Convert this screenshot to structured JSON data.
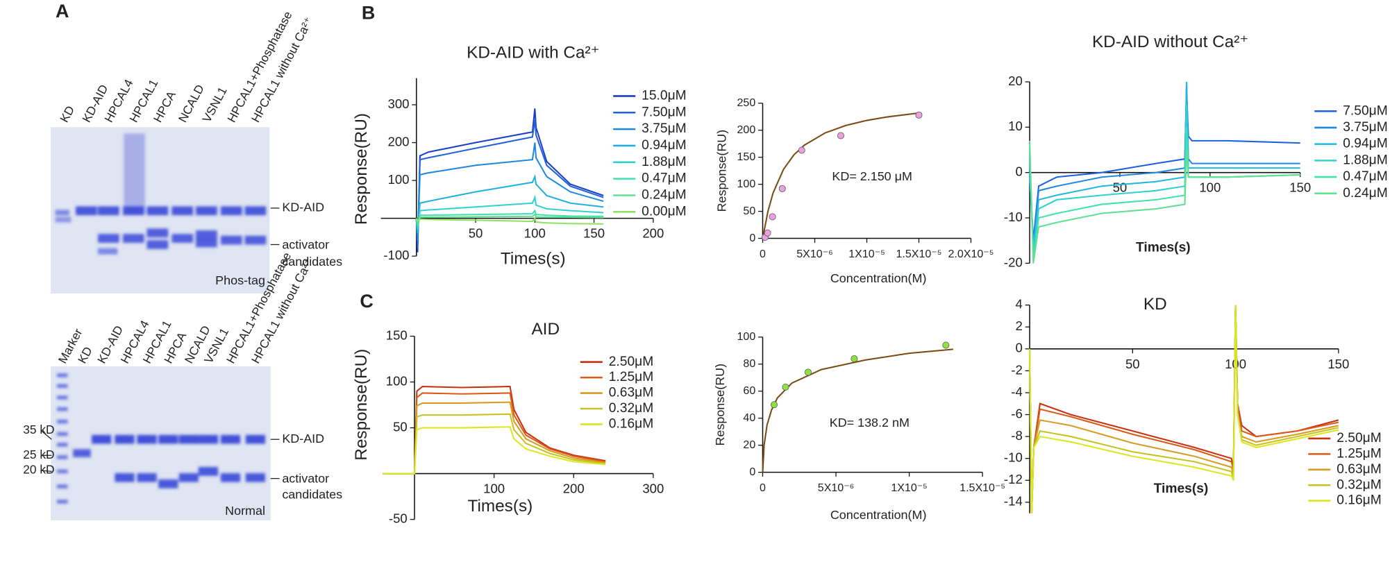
{
  "panel_labels": [
    "A",
    "B",
    "C"
  ],
  "gels": {
    "top": {
      "lanes": [
        "KD",
        "KD-AID",
        "HPCAL4",
        "HPCAL1",
        "HPCA",
        "NCALD",
        "VSNL1",
        "HPCAL1+Phosphatase",
        "HPCAL1 without Ca²⁺"
      ],
      "right_labels": [
        "KD-AID",
        "activator",
        "candidates"
      ],
      "name": "Phos-tag"
    },
    "bottom": {
      "lanes": [
        "Marker",
        "KD",
        "KD-AID",
        "HPCAL4",
        "HPCAL1",
        "HPCA",
        "NCALD",
        "VSNL1",
        "HPCAL1+Phosphatase",
        "HPCAL1 without Ca²⁺"
      ],
      "markers": [
        "35 kD",
        "25 kD",
        "20 kD"
      ],
      "right_labels": [
        "KD-AID",
        "activator",
        "candidates"
      ],
      "name": "Normal"
    }
  },
  "chart_data": [
    {
      "type": "line",
      "title": "KD-AID with Ca²⁺",
      "x_label": "Times(s)",
      "y_label": "Response(RU)",
      "xlim": [
        -30,
        200
      ],
      "ylim": [
        -100,
        370
      ],
      "xticks": [
        50,
        100,
        150,
        200
      ],
      "yticks": [
        -100,
        100,
        200,
        300
      ],
      "x": [
        0,
        1,
        3,
        10,
        50,
        98,
        100,
        101,
        110,
        130,
        158
      ],
      "series": [
        {
          "name": "15.0μM",
          "color": "#1a3fc8",
          "values": [
            0,
            -90,
            165,
            175,
            200,
            228,
            290,
            240,
            150,
            90,
            60
          ]
        },
        {
          "name": "7.50μM",
          "color": "#2060d8",
          "values": [
            0,
            -80,
            155,
            160,
            185,
            215,
            260,
            220,
            140,
            85,
            55
          ]
        },
        {
          "name": "3.75μM",
          "color": "#1e88e0",
          "values": [
            0,
            -60,
            115,
            120,
            140,
            155,
            200,
            160,
            110,
            70,
            45
          ]
        },
        {
          "name": "0.94μM",
          "color": "#20b0e0",
          "values": [
            0,
            -40,
            40,
            45,
            70,
            95,
            110,
            90,
            60,
            40,
            30
          ]
        },
        {
          "name": "1.88μM",
          "color": "#30d0d0",
          "values": [
            0,
            -30,
            20,
            22,
            30,
            40,
            55,
            35,
            25,
            20,
            15
          ]
        },
        {
          "name": "0.47μM",
          "color": "#40e0b0",
          "values": [
            0,
            -20,
            8,
            8,
            10,
            12,
            20,
            10,
            8,
            6,
            5
          ]
        },
        {
          "name": "0.24μM",
          "color": "#60e090",
          "values": [
            0,
            -10,
            3,
            3,
            4,
            5,
            10,
            4,
            3,
            3,
            2
          ]
        },
        {
          "name": "0.00μM",
          "color": "#90e060",
          "values": [
            0,
            -5,
            -2,
            -3,
            -5,
            -8,
            0,
            -10,
            -12,
            -14,
            -15
          ]
        }
      ]
    },
    {
      "type": "scatter",
      "x_label": "Concentration(M)",
      "y_label": "Response(RU)",
      "annotation": "KD= 2.150  μM",
      "xlim": [
        0,
        2e-05
      ],
      "ylim": [
        0,
        250
      ],
      "xticks": [
        {
          "value": 0,
          "label": "0"
        },
        {
          "value": 5e-06,
          "label": "5X10⁻⁶"
        },
        {
          "value": 1e-05,
          "label": "1X10⁻⁵"
        },
        {
          "value": 1.5e-05,
          "label": "1.5X10⁻⁵"
        },
        {
          "value": 2e-05,
          "label": "2.0X10⁻⁵"
        }
      ],
      "yticks": [
        0,
        50,
        100,
        150,
        200,
        250
      ],
      "points": {
        "color": "#e8a0e0",
        "x": [
          2.3e-07,
          4.7e-07,
          9.4e-07,
          1.88e-06,
          3.75e-06,
          7.5e-06,
          1.5e-05
        ],
        "values": [
          2,
          10,
          40,
          92,
          163,
          190,
          228
        ]
      },
      "fit": {
        "color": "#7a4a10",
        "x": [
          0,
          5e-07,
          1e-06,
          2e-06,
          3e-06,
          4e-06,
          6e-06,
          8e-06,
          1e-05,
          1.2e-05,
          1.5e-05
        ],
        "values": [
          0,
          50,
          84.1,
          127.7,
          154.4,
          172.4,
          195.1,
          208.9,
          218.1,
          224.7,
          231.8
        ]
      }
    },
    {
      "type": "line",
      "title": "KD-AID without Ca²⁺",
      "x_label": "Times(s)",
      "xlim": [
        0,
        150
      ],
      "ylim": [
        -20,
        20
      ],
      "xticks": [
        50,
        100,
        150
      ],
      "yticks": [
        -20,
        -10,
        0,
        10,
        20
      ],
      "x": [
        0,
        2,
        5,
        15,
        40,
        70,
        86,
        87,
        88,
        90,
        110,
        150
      ],
      "series": [
        {
          "name": "7.50μM",
          "color": "#1a60e0",
          "values": [
            0,
            -15,
            -3,
            -1,
            0,
            2,
            3,
            18,
            8,
            7,
            7,
            6.5
          ]
        },
        {
          "name": "3.75μM",
          "color": "#1e88e0",
          "values": [
            0,
            -16,
            -4,
            -3,
            -1,
            0,
            1,
            20,
            3,
            2,
            2,
            2
          ]
        },
        {
          "name": "0.94μM",
          "color": "#20b8e0",
          "values": [
            0,
            -17,
            -6,
            -5,
            -3,
            -2,
            -1,
            20,
            1,
            1,
            1,
            1
          ]
        },
        {
          "name": "1.88μM",
          "color": "#30d0d0",
          "values": [
            3,
            -18,
            -8,
            -6,
            -5,
            -4,
            -3,
            15,
            -1,
            -1,
            -1,
            -0.5
          ]
        },
        {
          "name": "0.47μM",
          "color": "#40e0b0",
          "values": [
            5,
            -19,
            -10,
            -9,
            -7,
            -6,
            -5,
            10,
            -1,
            -1,
            -1,
            -0.5
          ]
        },
        {
          "name": "0.24μM",
          "color": "#60e090",
          "values": [
            7,
            -20,
            -12,
            -11,
            -9,
            -8,
            -7,
            5,
            -1,
            -1,
            -1,
            -0.5
          ]
        }
      ]
    },
    {
      "type": "line",
      "title": "AID",
      "x_label": "Times(s)",
      "y_label": "Response(RU)",
      "xlim": [
        -40,
        300
      ],
      "ylim": [
        -50,
        150
      ],
      "xticks": [
        100,
        200,
        300
      ],
      "yticks": [
        -50,
        50,
        100,
        150
      ],
      "x": [
        -40,
        0,
        3,
        10,
        60,
        119,
        120,
        125,
        140,
        170,
        200,
        240
      ],
      "series": [
        {
          "name": "2.50μM",
          "color": "#c83010",
          "values": [
            0,
            0,
            90,
            95,
            94,
            95,
            95,
            70,
            45,
            28,
            20,
            14
          ]
        },
        {
          "name": "1.25μM",
          "color": "#d85a18",
          "values": [
            0,
            0,
            83,
            88,
            87,
            88,
            88,
            64,
            42,
            27,
            19,
            13
          ]
        },
        {
          "name": "0.63μM",
          "color": "#d89a20",
          "values": [
            0,
            0,
            74,
            77,
            77,
            78,
            78,
            57,
            38,
            25,
            17,
            12
          ]
        },
        {
          "name": "0.32μM",
          "color": "#c8c020",
          "values": [
            0,
            0,
            62,
            64,
            64,
            65,
            65,
            48,
            33,
            22,
            15,
            11
          ]
        },
        {
          "name": "0.16μM",
          "color": "#d8e820",
          "values": [
            0,
            0,
            48,
            50,
            50,
            51,
            51,
            38,
            27,
            19,
            13,
            10
          ]
        }
      ]
    },
    {
      "type": "scatter",
      "x_label": "Concentration(M)",
      "y_label": "Response(RU)",
      "annotation": "KD= 138.2  nM",
      "xlim": [
        0,
        1.5e-05
      ],
      "ylim": [
        0,
        100
      ],
      "xticks": [
        {
          "value": 0,
          "label": "0"
        },
        {
          "value": 5e-06,
          "label": "5X10⁻⁶"
        },
        {
          "value": 1e-05,
          "label": "1X10⁻⁵"
        },
        {
          "value": 1.5e-05,
          "label": "1.5X10⁻⁵"
        }
      ],
      "yticks": [
        0,
        20,
        40,
        60,
        80,
        100
      ],
      "points": {
        "color": "#90e040",
        "x": [
          7.8e-07,
          1.56e-06,
          3.1e-06,
          6.25e-06,
          1.25e-05
        ],
        "values": [
          50,
          63,
          74,
          84,
          94
        ]
      },
      "fit": {
        "color": "#7a4a10",
        "x": [
          0,
          1e-07,
          3e-07,
          6e-07,
          1e-06,
          2e-06,
          4e-06,
          7e-06,
          1e-05,
          1.3e-05
        ],
        "values": [
          0,
          20,
          35,
          46,
          55,
          66,
          76,
          83,
          88,
          91
        ]
      }
    },
    {
      "type": "line",
      "title": "KD",
      "x_label": "Times(s)",
      "xlim": [
        0,
        150
      ],
      "ylim": [
        -15,
        4
      ],
      "xticks": [
        50,
        100,
        150
      ],
      "yticks": [
        -14,
        -12,
        -10,
        -8,
        -6,
        -4,
        -2,
        0,
        2,
        4
      ],
      "x": [
        0,
        1,
        2,
        5,
        20,
        50,
        80,
        98,
        99,
        100,
        101,
        103,
        110,
        130,
        150
      ],
      "series": [
        {
          "name": "2.50μM",
          "color": "#c83010",
          "values": [
            0,
            -15,
            -9,
            -5,
            -6,
            -7.5,
            -9,
            -10,
            -11,
            4,
            -5,
            -7,
            -8,
            -7.5,
            -6.5
          ]
        },
        {
          "name": "1.25μM",
          "color": "#d85a18",
          "values": [
            0,
            -15,
            -9,
            -5.5,
            -6.2,
            -7.8,
            -9.2,
            -10.3,
            -11,
            4,
            -5,
            -7.5,
            -8,
            -7.5,
            -6.7
          ]
        },
        {
          "name": "0.63μM",
          "color": "#d89a20",
          "values": [
            0,
            -15,
            -9,
            -6.5,
            -7,
            -8.6,
            -9.8,
            -10.8,
            -11.5,
            4,
            -6,
            -8,
            -8.5,
            -7.8,
            -7
          ]
        },
        {
          "name": "0.32μM",
          "color": "#c8c020",
          "values": [
            0,
            -15,
            -9,
            -7.5,
            -8,
            -9.4,
            -10.3,
            -11.2,
            -12,
            4,
            -6,
            -8.3,
            -8.8,
            -8,
            -7.2
          ]
        },
        {
          "name": "0.16μM",
          "color": "#d8e820",
          "values": [
            0,
            -15,
            -9,
            -8,
            -8.5,
            -9.8,
            -10.8,
            -11.6,
            -12,
            4,
            -6,
            -8.5,
            -9,
            -8.2,
            -7.4
          ]
        }
      ]
    }
  ]
}
